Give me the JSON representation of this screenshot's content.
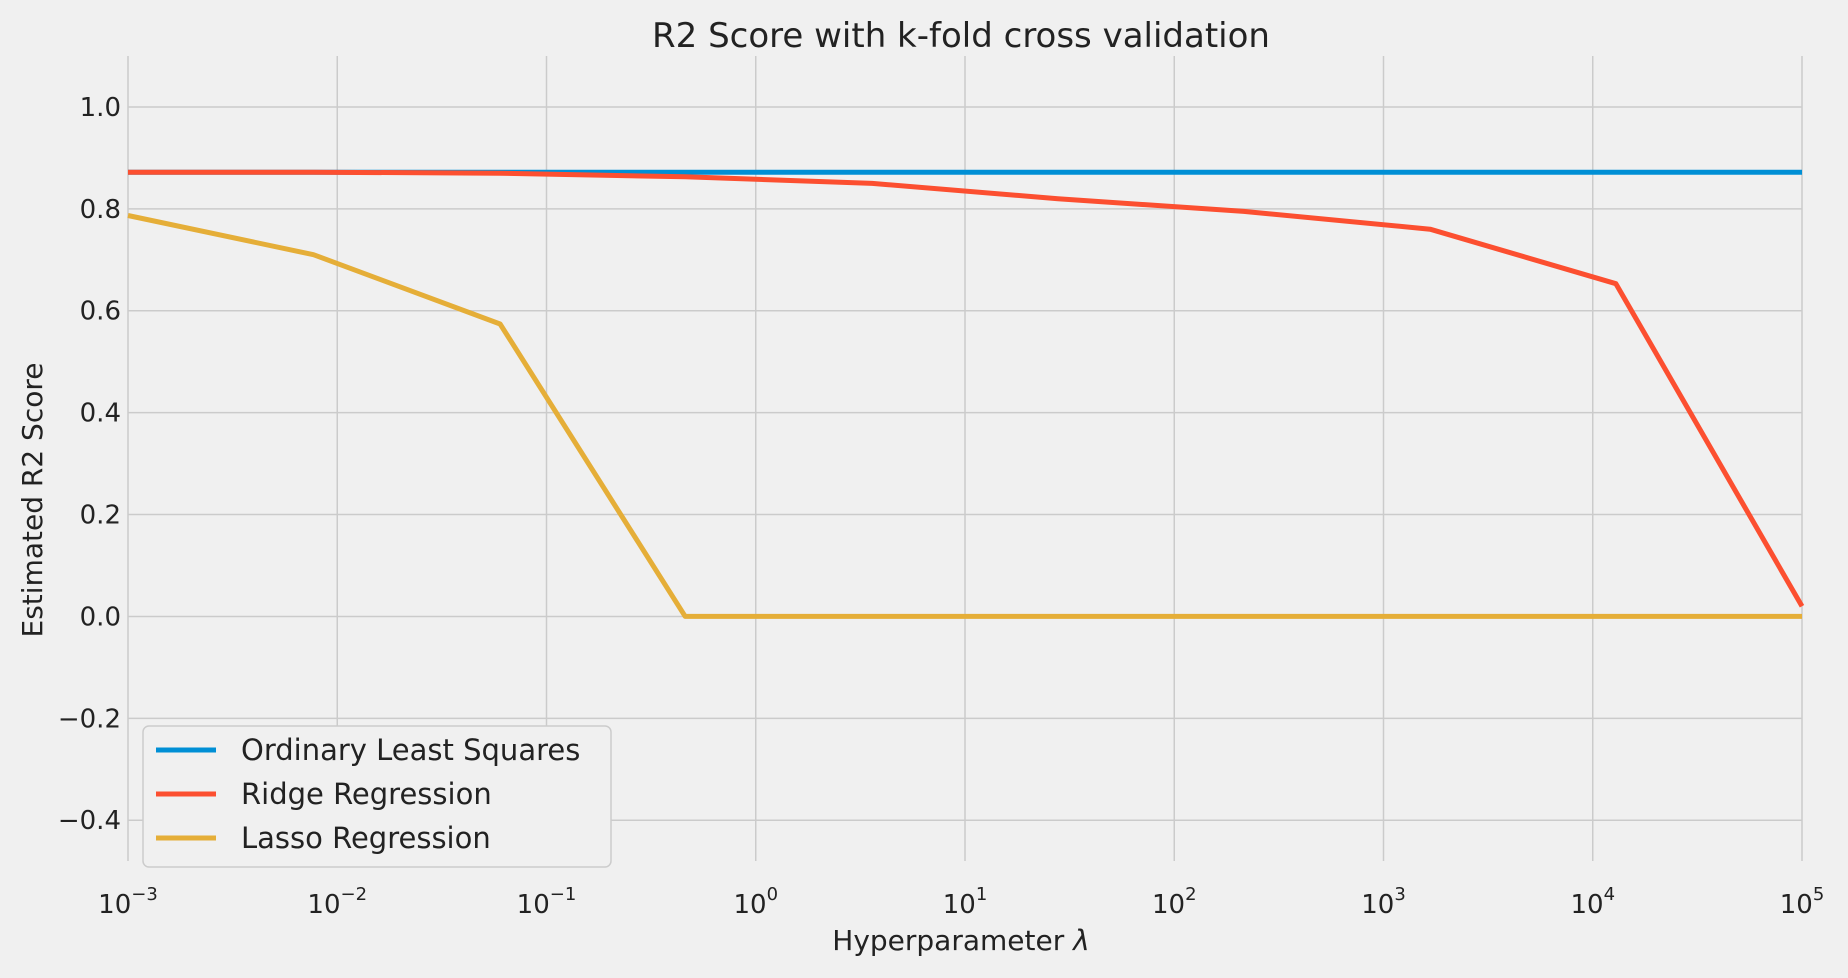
{
  "chart_data": {
    "type": "line",
    "title": "R2 Score with k-fold cross validation",
    "xlabel": "Hyperparameter",
    "xlabel_symbol": "λ",
    "ylabel": "Estimated R2 Score",
    "xscale": "log",
    "xlim": [
      0.001,
      100000
    ],
    "ylim": [
      -0.48,
      1.1
    ],
    "grid": true,
    "legend_position": "lower-left",
    "x_ticks": [
      {
        "base": "10",
        "exp": "−3",
        "value": 0.001
      },
      {
        "base": "10",
        "exp": "−2",
        "value": 0.01
      },
      {
        "base": "10",
        "exp": "−1",
        "value": 0.1
      },
      {
        "base": "10",
        "exp": "0",
        "value": 1
      },
      {
        "base": "10",
        "exp": "1",
        "value": 10
      },
      {
        "base": "10",
        "exp": "2",
        "value": 100
      },
      {
        "base": "10",
        "exp": "3",
        "value": 1000
      },
      {
        "base": "10",
        "exp": "4",
        "value": 10000
      },
      {
        "base": "10",
        "exp": "5",
        "value": 100000
      }
    ],
    "y_ticks": [
      {
        "label": "1.0",
        "value": 1.0
      },
      {
        "label": "0.8",
        "value": 0.8
      },
      {
        "label": "0.6",
        "value": 0.6
      },
      {
        "label": "0.4",
        "value": 0.4
      },
      {
        "label": "0.2",
        "value": 0.2
      },
      {
        "label": "0.0",
        "value": 0.0
      },
      {
        "label": "−0.2",
        "value": -0.2
      },
      {
        "label": "−0.4",
        "value": -0.4
      }
    ],
    "series": [
      {
        "name": "Ordinary Least Squares",
        "color": "#008fd5",
        "x": [
          0.001,
          0.0075,
          0.056,
          0.42,
          3.2,
          24,
          180,
          1350,
          10000,
          100000
        ],
        "y": [
          0.872,
          0.872,
          0.872,
          0.872,
          0.872,
          0.872,
          0.872,
          0.872,
          0.872,
          0.872
        ]
      },
      {
        "name": "Ridge Regression",
        "color": "#fc4f30",
        "x": [
          0.001,
          0.0077,
          0.06,
          0.46,
          3.6,
          27.8,
          215,
          1670,
          12900,
          100000
        ],
        "y": [
          0.872,
          0.872,
          0.87,
          0.863,
          0.85,
          0.82,
          0.795,
          0.76,
          0.653,
          0.02
        ]
      },
      {
        "name": "Lasso Regression",
        "color": "#e5ae38",
        "x": [
          0.001,
          0.0077,
          0.06,
          0.46,
          3.6,
          27.8,
          215,
          1670,
          12900,
          100000
        ],
        "y": [
          0.787,
          0.71,
          0.574,
          0.0,
          0.0,
          0.0,
          0.0,
          0.0,
          0.0,
          0.0
        ]
      }
    ]
  }
}
